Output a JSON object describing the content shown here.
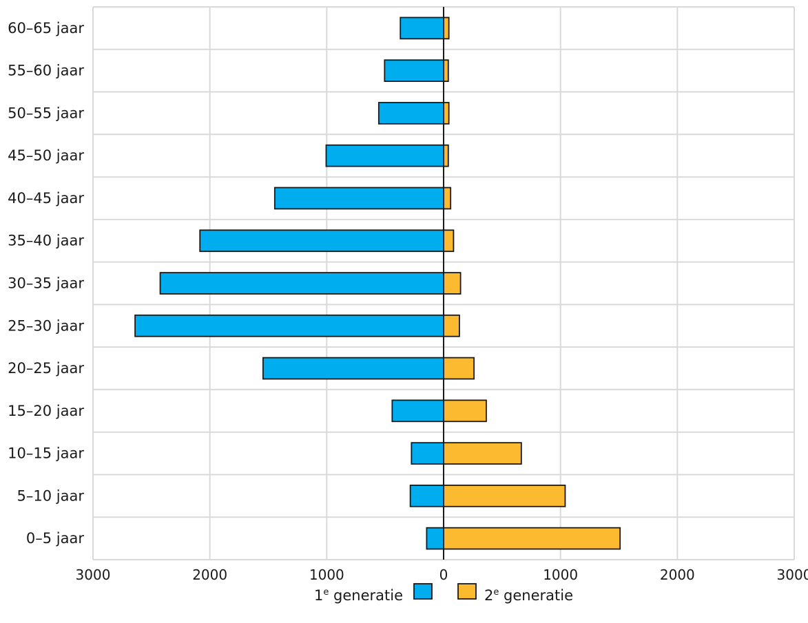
{
  "chart_data": {
    "type": "bar",
    "orientation": "horizontal",
    "layout": "population-pyramid",
    "categories": [
      "60–65 jaar",
      "55–60 jaar",
      "50–55 jaar",
      "45–50 jaar",
      "40–45 jaar",
      "35–40 jaar",
      "30–35 jaar",
      "25–30 jaar",
      "20–25 jaar",
      "15–20 jaar",
      "10–15 jaar",
      "5–10 jaar",
      "0–5 jaar"
    ],
    "series": [
      {
        "name": "1e generatie",
        "legend_main": "1",
        "legend_sup": "e",
        "legend_rest": " generatie",
        "color": "#00aeef",
        "side": "left",
        "values": [
          370,
          505,
          555,
          1005,
          1445,
          2085,
          2425,
          2640,
          1545,
          440,
          275,
          285,
          145
        ]
      },
      {
        "name": "2e generatie",
        "legend_main": "2",
        "legend_sup": "e",
        "legend_rest": " generatie",
        "color": "#fbba2f",
        "side": "right",
        "values": [
          45,
          40,
          45,
          40,
          60,
          85,
          145,
          135,
          260,
          365,
          665,
          1040,
          1510
        ]
      }
    ],
    "x_ticks": [
      "3000",
      "2000",
      "1000",
      "0",
      "1000",
      "2000",
      "3000"
    ],
    "xlim": [
      -3000,
      3000
    ],
    "grid": true,
    "legend_position": "bottom-center",
    "title": "",
    "xlabel": "",
    "ylabel": ""
  }
}
